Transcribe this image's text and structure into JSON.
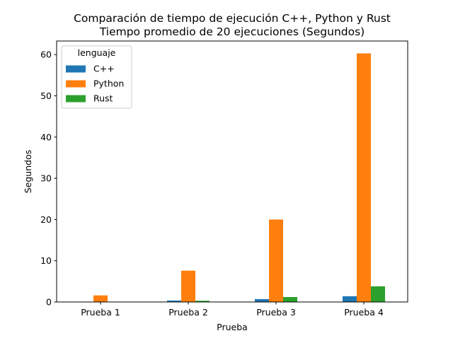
{
  "chart_data": {
    "type": "bar",
    "title": "Comparación de tiempo de ejecución C++, Python y Rust",
    "subtitle": "Tiempo promedio de 20 ejecuciones (Segundos)",
    "xlabel": "Prueba",
    "ylabel": "Segundos",
    "categories": [
      "Prueba 1",
      "Prueba 2",
      "Prueba 3",
      "Prueba 4"
    ],
    "ylim": [
      0,
      63.3
    ],
    "yticks": [
      0,
      10,
      20,
      30,
      40,
      50,
      60
    ],
    "grid": false,
    "legend": {
      "title": "lenguaje",
      "placement": "top-left"
    },
    "series": [
      {
        "name": "C++",
        "color": "#1f77b4",
        "values": [
          0.05,
          0.35,
          0.7,
          1.4
        ]
      },
      {
        "name": "Python",
        "color": "#ff7f0e",
        "values": [
          1.6,
          7.6,
          20.0,
          60.3
        ]
      },
      {
        "name": "Rust",
        "color": "#2ca02c",
        "values": [
          0.05,
          0.3,
          1.2,
          3.8
        ]
      }
    ]
  }
}
